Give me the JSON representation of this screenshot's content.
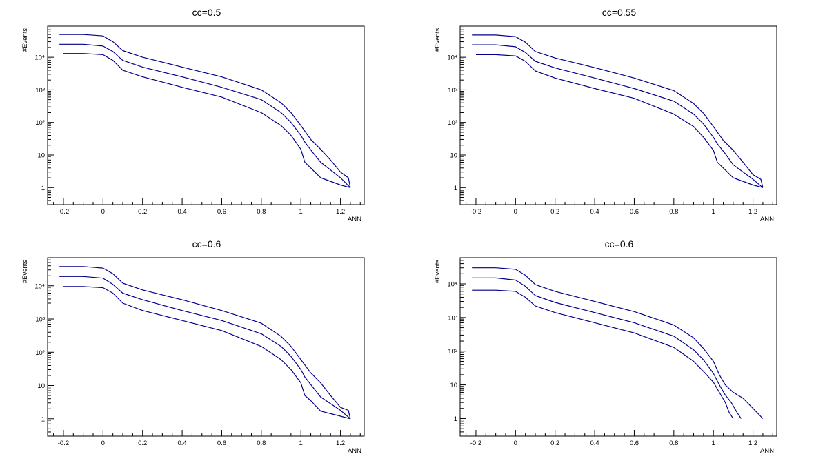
{
  "colors": {
    "series": "#00008b",
    "axes": "#000000",
    "background": "#ffffff"
  },
  "chart_data": [
    {
      "type": "line",
      "title": "cc=0.5",
      "xlabel": "ANN",
      "ylabel": "#Events",
      "yscale": "log",
      "xlim": [
        -0.28,
        1.32
      ],
      "ylim": [
        0.3,
        90000
      ],
      "xticks": [
        "-0.2",
        "0",
        "0.2",
        "0.4",
        "0.6",
        "0.8",
        "1",
        "1.2"
      ],
      "yticks": [
        "1",
        "10",
        "10²",
        "10³",
        "10⁴"
      ],
      "series": [
        {
          "name": "upper",
          "x": [
            -0.22,
            -0.1,
            0,
            0.05,
            0.1,
            0.2,
            0.4,
            0.6,
            0.8,
            0.9,
            0.95,
            1.0,
            1.05,
            1.1,
            1.15,
            1.2,
            1.24,
            1.25
          ],
          "y": [
            50000,
            50000,
            45000,
            30000,
            16000,
            10000,
            5000,
            2500,
            1000,
            400,
            200,
            80,
            30,
            15,
            7,
            3,
            2,
            1
          ]
        },
        {
          "name": "middle",
          "x": [
            -0.22,
            -0.1,
            0,
            0.05,
            0.1,
            0.2,
            0.4,
            0.6,
            0.8,
            0.9,
            0.95,
            1.0,
            1.02,
            1.06,
            1.1,
            1.2,
            1.25
          ],
          "y": [
            25000,
            25000,
            22000,
            15000,
            8000,
            5000,
            2500,
            1200,
            500,
            200,
            100,
            40,
            25,
            12,
            6,
            2,
            1
          ]
        },
        {
          "name": "lower",
          "x": [
            -0.2,
            -0.1,
            0,
            0.05,
            0.1,
            0.2,
            0.4,
            0.6,
            0.8,
            0.9,
            0.95,
            1.0,
            1.02,
            1.05,
            1.1,
            1.2,
            1.25
          ],
          "y": [
            13000,
            13000,
            12000,
            8000,
            4000,
            2500,
            1200,
            600,
            200,
            80,
            40,
            15,
            6,
            4,
            2,
            1.2,
            1
          ]
        }
      ]
    },
    {
      "type": "line",
      "title": "cc=0.55",
      "xlabel": "ANN",
      "ylabel": "#Events",
      "yscale": "log",
      "xlim": [
        -0.28,
        1.32
      ],
      "ylim": [
        0.3,
        90000
      ],
      "xticks": [
        "-0.2",
        "0",
        "0.2",
        "0.4",
        "0.6",
        "0.8",
        "1",
        "1.2"
      ],
      "yticks": [
        "1",
        "10",
        "10²",
        "10³",
        "10⁴"
      ],
      "series": [
        {
          "name": "upper",
          "x": [
            -0.22,
            -0.1,
            0,
            0.05,
            0.1,
            0.2,
            0.4,
            0.6,
            0.8,
            0.9,
            0.95,
            1.0,
            1.05,
            1.1,
            1.15,
            1.2,
            1.24,
            1.25
          ],
          "y": [
            48000,
            48000,
            43000,
            29000,
            15000,
            9500,
            4800,
            2300,
            950,
            380,
            190,
            75,
            28,
            14,
            6,
            2.5,
            1.8,
            1
          ]
        },
        {
          "name": "middle",
          "x": [
            -0.22,
            -0.1,
            0,
            0.05,
            0.1,
            0.2,
            0.4,
            0.6,
            0.8,
            0.9,
            0.95,
            1.0,
            1.02,
            1.06,
            1.1,
            1.2,
            1.25
          ],
          "y": [
            24000,
            24000,
            21000,
            14000,
            7500,
            4700,
            2300,
            1100,
            450,
            180,
            90,
            35,
            22,
            11,
            5,
            1.8,
            1
          ]
        },
        {
          "name": "lower",
          "x": [
            -0.2,
            -0.1,
            0,
            0.05,
            0.1,
            0.2,
            0.4,
            0.6,
            0.8,
            0.9,
            0.95,
            1.0,
            1.02,
            1.05,
            1.1,
            1.2,
            1.25
          ],
          "y": [
            12000,
            12000,
            11000,
            7500,
            3800,
            2300,
            1100,
            550,
            180,
            75,
            35,
            14,
            6,
            4,
            2,
            1.2,
            1
          ]
        }
      ]
    },
    {
      "type": "line",
      "title": "cc=0.6",
      "xlabel": "ANN",
      "ylabel": "#Events",
      "yscale": "log",
      "xlim": [
        -0.28,
        1.32
      ],
      "ylim": [
        0.3,
        70000
      ],
      "xticks": [
        "-0.2",
        "0",
        "0.2",
        "0.4",
        "0.6",
        "0.8",
        "1",
        "1.2"
      ],
      "yticks": [
        "1",
        "10",
        "10²",
        "10³",
        "10⁴"
      ],
      "series": [
        {
          "name": "upper",
          "x": [
            -0.22,
            -0.1,
            0,
            0.05,
            0.1,
            0.2,
            0.4,
            0.6,
            0.8,
            0.9,
            0.95,
            1.0,
            1.05,
            1.1,
            1.15,
            1.2,
            1.24,
            1.25
          ],
          "y": [
            38000,
            38000,
            34000,
            23000,
            12000,
            7500,
            3800,
            1800,
            750,
            300,
            150,
            60,
            24,
            12,
            5,
            2.2,
            1.8,
            1
          ]
        },
        {
          "name": "middle",
          "x": [
            -0.22,
            -0.1,
            0,
            0.05,
            0.1,
            0.2,
            0.4,
            0.6,
            0.8,
            0.9,
            0.95,
            1.0,
            1.02,
            1.06,
            1.1,
            1.2,
            1.25
          ],
          "y": [
            19000,
            19000,
            17000,
            11000,
            6000,
            3800,
            1800,
            900,
            360,
            150,
            75,
            30,
            18,
            9,
            4.5,
            1.8,
            1
          ]
        },
        {
          "name": "lower",
          "x": [
            -0.2,
            -0.1,
            0,
            0.05,
            0.1,
            0.2,
            0.4,
            0.6,
            0.8,
            0.9,
            0.95,
            1.0,
            1.02,
            1.05,
            1.1,
            1.2,
            1.25
          ],
          "y": [
            9500,
            9500,
            8800,
            6000,
            3000,
            1800,
            900,
            450,
            150,
            60,
            30,
            12,
            5,
            3.5,
            1.7,
            1.2,
            1
          ]
        }
      ]
    },
    {
      "type": "line",
      "title": "cc=0.6",
      "xlabel": "ANN",
      "ylabel": "#Events",
      "yscale": "log",
      "xlim": [
        -0.28,
        1.32
      ],
      "ylim": [
        0.3,
        60000
      ],
      "xticks": [
        "-0.2",
        "0",
        "0.2",
        "0.4",
        "0.6",
        "0.8",
        "1",
        "1.2"
      ],
      "yticks": [
        "1",
        "10",
        "10²",
        "10³",
        "10⁴"
      ],
      "series": [
        {
          "name": "upper",
          "x": [
            -0.22,
            -0.1,
            0,
            0.05,
            0.1,
            0.2,
            0.4,
            0.6,
            0.8,
            0.9,
            0.95,
            1.0,
            1.03,
            1.06,
            1.1,
            1.15,
            1.2,
            1.25
          ],
          "y": [
            30000,
            30000,
            27000,
            18000,
            9500,
            6000,
            3000,
            1500,
            600,
            250,
            120,
            50,
            20,
            10,
            6,
            4,
            2,
            1
          ]
        },
        {
          "name": "middle",
          "x": [
            -0.22,
            -0.1,
            0,
            0.05,
            0.1,
            0.2,
            0.4,
            0.6,
            0.8,
            0.9,
            0.95,
            1.0,
            1.03,
            1.06,
            1.09,
            1.12,
            1.14
          ],
          "y": [
            15000,
            15000,
            13000,
            8500,
            4500,
            2800,
            1400,
            700,
            280,
            110,
            55,
            22,
            10,
            5,
            3,
            1.5,
            1
          ]
        },
        {
          "name": "lower",
          "x": [
            -0.22,
            -0.1,
            0,
            0.05,
            0.1,
            0.2,
            0.4,
            0.6,
            0.8,
            0.9,
            0.95,
            1.0,
            1.03,
            1.06,
            1.08,
            1.1
          ],
          "y": [
            6500,
            6500,
            6000,
            4000,
            2200,
            1400,
            700,
            350,
            130,
            50,
            25,
            12,
            6,
            3,
            1.5,
            1
          ]
        }
      ]
    }
  ]
}
